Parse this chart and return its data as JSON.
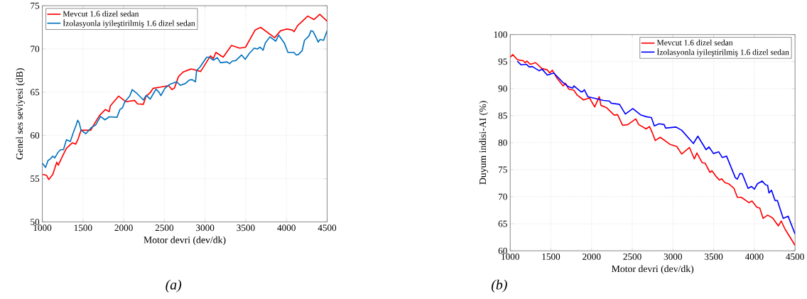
{
  "chart_data": [
    {
      "type": "line",
      "xlabel": "Motor devri (dev/dk)",
      "ylabel": "Genel ses seviyesi (dB)",
      "xlim": [
        1000,
        4500
      ],
      "ylim": [
        50,
        75
      ],
      "xticks": [
        1000,
        1500,
        2000,
        2500,
        3000,
        3500,
        4000,
        4500
      ],
      "yticks": [
        50,
        55,
        60,
        65,
        70,
        75
      ],
      "grid": true,
      "legend": "top left",
      "marker": "none",
      "line_style": "solid",
      "annotations": [
        "(a)"
      ],
      "series": [
        {
          "name": "Mevcut 1.6 dizel sedan",
          "color": "#ff0000",
          "x": [
            1000,
            1050,
            1080,
            1129,
            1177,
            1196,
            1248,
            1296,
            1368,
            1411,
            1440,
            1476,
            1595,
            1643,
            1703,
            1775,
            1823,
            1835,
            1938,
            2026,
            2134,
            2170,
            2242,
            2273,
            2326,
            2362,
            2457,
            2553,
            2594,
            2625,
            2673,
            2733,
            2805,
            2829,
            2946,
            3066,
            3102,
            3133,
            3222,
            3325,
            3425,
            3497,
            3616,
            3683,
            3855,
            3927,
            3999,
            4070,
            4094,
            4137,
            4262,
            4338,
            4410,
            4500
          ],
          "values": [
            55.5,
            55.4,
            54.9,
            55.5,
            56.9,
            56.55,
            57.6,
            58.5,
            59.15,
            59.0,
            59.6,
            60.6,
            60.6,
            61.4,
            62.3,
            63.0,
            62.75,
            63.4,
            64.55,
            63.9,
            64.05,
            63.65,
            63.6,
            64.5,
            64.95,
            65.45,
            65.6,
            65.75,
            65.3,
            65.5,
            66.8,
            67.35,
            67.6,
            67.7,
            67.4,
            69.2,
            68.9,
            69.6,
            69.05,
            70.4,
            70.1,
            70.2,
            72.2,
            72.5,
            71.3,
            72.1,
            72.3,
            72.2,
            72.0,
            72.7,
            73.8,
            73.4,
            74.0,
            73.2
          ]
        },
        {
          "name": "İzolasyonla iyileştirilmiş 1.6 dizel sedan",
          "color": "#0072bd",
          "x": [
            1000,
            1040,
            1070,
            1100,
            1129,
            1153,
            1189,
            1225,
            1260,
            1296,
            1344,
            1380,
            1416,
            1435,
            1452,
            1476,
            1535,
            1607,
            1655,
            1715,
            1770,
            1823,
            1918,
            1954,
            1985,
            2014,
            2074,
            2105,
            2158,
            2242,
            2277,
            2326,
            2369,
            2397,
            2434,
            2457,
            2506,
            2566,
            2649,
            2697,
            2757,
            2805,
            2841,
            2882,
            2896,
            2937,
            3020,
            3054,
            3102,
            3150,
            3190,
            3270,
            3302,
            3334,
            3377,
            3449,
            3493,
            3545,
            3605,
            3641,
            3677,
            3713,
            3741,
            3797,
            3869,
            3905,
            3973,
            4018,
            4092,
            4121,
            4145,
            4193,
            4222,
            4277,
            4301,
            4325,
            4361,
            4390,
            4414,
            4457,
            4500
          ],
          "values": [
            56.8,
            56.3,
            57.1,
            57.3,
            57.6,
            57.4,
            58.0,
            58.35,
            58.35,
            59.5,
            59.3,
            60.3,
            61.2,
            61.75,
            61.5,
            60.6,
            60.2,
            60.95,
            61.2,
            62.2,
            61.8,
            62.15,
            62.1,
            63.0,
            63.2,
            63.9,
            64.55,
            65.3,
            64.9,
            64.1,
            64.65,
            64.2,
            64.9,
            65.35,
            65.0,
            64.6,
            65.45,
            65.9,
            66.2,
            65.8,
            66.0,
            66.4,
            66.45,
            66.2,
            67.5,
            67.9,
            69.05,
            69.05,
            68.7,
            69.0,
            68.4,
            68.5,
            68.3,
            68.6,
            68.65,
            69.3,
            68.8,
            69.5,
            70.1,
            70.0,
            70.2,
            69.85,
            70.7,
            71.4,
            70.9,
            71.6,
            70.7,
            69.6,
            69.6,
            69.3,
            69.35,
            69.8,
            71.0,
            71.5,
            72.1,
            72.05,
            71.4,
            70.8,
            71.1,
            71.0,
            72.1
          ]
        }
      ]
    },
    {
      "type": "line",
      "xlabel": "Motor devri (dev/dk)",
      "ylabel": "Duyum indisi-AI (%)",
      "xlim": [
        1000,
        4500
      ],
      "ylim": [
        60,
        100
      ],
      "xticks": [
        1000,
        1500,
        2000,
        2500,
        3000,
        3500,
        4000,
        4500
      ],
      "yticks": [
        60,
        65,
        70,
        75,
        80,
        85,
        90,
        95,
        100
      ],
      "grid": true,
      "legend": "top right",
      "marker": "none",
      "line_style": "solid",
      "annotations": [
        "(b)"
      ],
      "series": [
        {
          "name": "Mevcut 1.6 dizel sedan",
          "color": "#ff0000",
          "x": [
            1000,
            1031,
            1086,
            1120,
            1158,
            1182,
            1206,
            1247,
            1312,
            1391,
            1451,
            1487,
            1518,
            1576,
            1650,
            1679,
            1720,
            1782,
            1823,
            1902,
            1974,
            2038,
            2094,
            2115,
            2182,
            2278,
            2319,
            2382,
            2447,
            2543,
            2579,
            2670,
            2711,
            2747,
            2783,
            2843,
            2963,
            3047,
            3107,
            3203,
            3263,
            3294,
            3359,
            3395,
            3455,
            3479,
            3527,
            3570,
            3599,
            3640,
            3683,
            3750,
            3791,
            3839,
            3935,
            3971,
            4031,
            4067,
            4108,
            4163,
            4223,
            4295,
            4331,
            4379,
            4439,
            4500
          ],
          "values": [
            95.8,
            96.3,
            95.4,
            95.25,
            95.2,
            94.8,
            95.1,
            94.5,
            94.8,
            93.7,
            93.5,
            92.9,
            93.4,
            91.9,
            90.5,
            91.0,
            89.9,
            89.7,
            88.8,
            87.9,
            88.3,
            86.6,
            88.5,
            86.9,
            86.5,
            85.1,
            85.2,
            83.2,
            83.35,
            84.4,
            83.35,
            82.55,
            83.0,
            81.8,
            80.4,
            81.0,
            79.7,
            79.3,
            77.9,
            79.1,
            77.0,
            78.1,
            76.3,
            76.2,
            74.5,
            74.8,
            73.8,
            73.1,
            73.3,
            72.6,
            72.4,
            71.55,
            69.9,
            69.9,
            68.9,
            69.2,
            68.05,
            67.9,
            66.0,
            66.6,
            66.1,
            64.6,
            65.5,
            63.95,
            62.5,
            61.0
          ]
        },
        {
          "name": "İzolasyonla iyileştirilmiş 1.6 dizel sedan",
          "color": "#0000ff",
          "x": [
            1086,
            1134,
            1199,
            1235,
            1271,
            1355,
            1391,
            1456,
            1535,
            1643,
            1710,
            1768,
            1782,
            1816,
            1871,
            1895,
            1911,
            1954,
            2098,
            2146,
            2218,
            2242,
            2343,
            2415,
            2506,
            2602,
            2674,
            2735,
            2771,
            2831,
            2891,
            2910,
            3035,
            3107,
            3251,
            3306,
            3407,
            3443,
            3498,
            3563,
            3606,
            3659,
            3767,
            3791,
            3823,
            3851,
            3923,
            3966,
            4000,
            4038,
            4095,
            4139,
            4163,
            4180,
            4211,
            4254,
            4283,
            4355,
            4415,
            4500
          ],
          "values": [
            95.1,
            94.4,
            94.5,
            94.0,
            94.1,
            93.3,
            93.6,
            92.5,
            92.9,
            91.2,
            90.4,
            90.1,
            90.5,
            90.1,
            89.4,
            89.5,
            89.8,
            88.5,
            88.0,
            87.8,
            87.7,
            87.3,
            87.1,
            85.3,
            86.3,
            85.15,
            84.8,
            84.65,
            83.1,
            83.5,
            83.35,
            82.7,
            82.9,
            82.3,
            79.85,
            81.2,
            78.7,
            79.2,
            78.0,
            78.3,
            77.25,
            77.5,
            73.5,
            73.25,
            74.3,
            74.25,
            71.55,
            71.9,
            71.4,
            72.4,
            72.9,
            72.2,
            72.1,
            70.7,
            71.2,
            69.3,
            69.3,
            66.0,
            66.4,
            63.1
          ]
        }
      ]
    }
  ]
}
